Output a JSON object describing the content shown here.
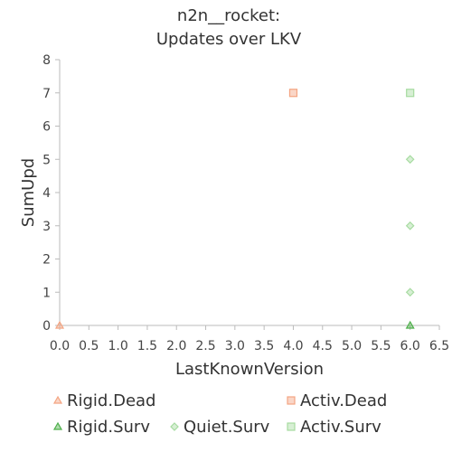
{
  "chart_data": {
    "type": "scatter",
    "title": [
      "n2n__rocket:",
      "Updates over LKV"
    ],
    "xlabel": "LastKnownVersion",
    "ylabel": "SumUpd",
    "xlim": [
      0,
      6.5
    ],
    "ylim": [
      0,
      8
    ],
    "xticks": [
      "0.0",
      "0.5",
      "1.0",
      "1.5",
      "2.0",
      "2.5",
      "3.0",
      "3.5",
      "4.0",
      "4.5",
      "5.0",
      "5.5",
      "6.0",
      "6.5"
    ],
    "yticks": [
      "0",
      "1",
      "2",
      "3",
      "4",
      "5",
      "6",
      "7",
      "8"
    ],
    "grid": false,
    "legend_position": "bottom",
    "series": [
      {
        "name": "Rigid.Dead",
        "marker": "triangle",
        "color": "#f4a582",
        "points": [
          [
            0,
            0
          ]
        ]
      },
      {
        "name": "Activ.Dead",
        "marker": "square",
        "color": "#f4a582",
        "points": [
          [
            4,
            7
          ]
        ]
      },
      {
        "name": "Rigid.Surv",
        "marker": "triangle",
        "color": "#4daf4a",
        "points": [
          [
            6,
            0
          ]
        ]
      },
      {
        "name": "Quiet.Surv",
        "marker": "diamond",
        "color": "#a6dba0",
        "points": [
          [
            6,
            1
          ],
          [
            6,
            3
          ],
          [
            6,
            5
          ]
        ]
      },
      {
        "name": "Activ.Surv",
        "marker": "square",
        "color": "#a6dba0",
        "points": [
          [
            6,
            7
          ]
        ]
      }
    ]
  }
}
